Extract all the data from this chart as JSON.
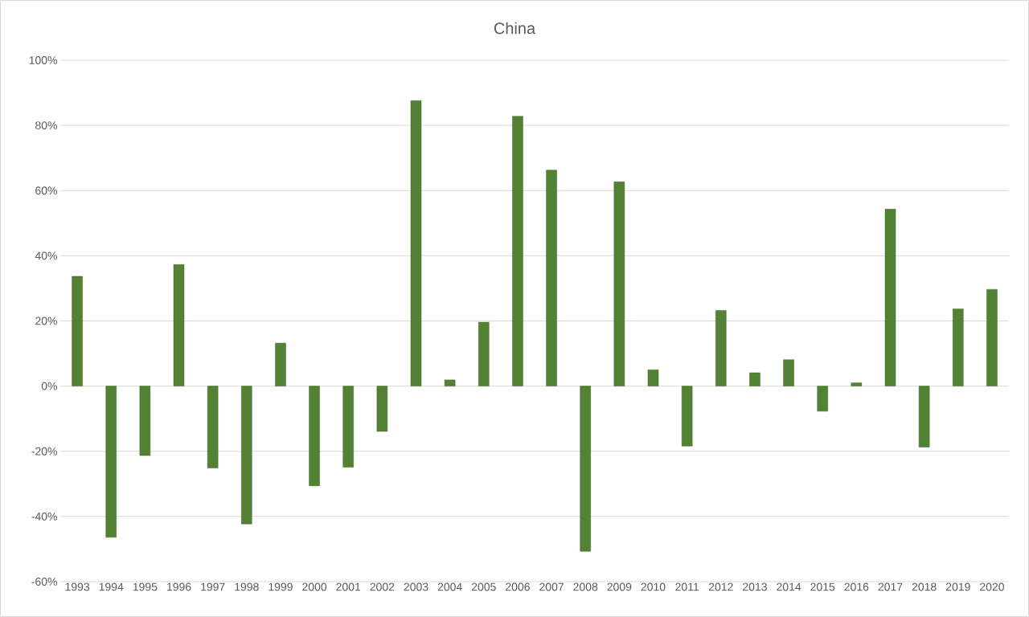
{
  "chart_data": {
    "type": "bar",
    "title": "China",
    "categories": [
      "1993",
      "1994",
      "1995",
      "1996",
      "1997",
      "1998",
      "1999",
      "2000",
      "2001",
      "2002",
      "2003",
      "2004",
      "2005",
      "2006",
      "2007",
      "2008",
      "2009",
      "2010",
      "2011",
      "2012",
      "2013",
      "2014",
      "2015",
      "2016",
      "2017",
      "2018",
      "2019",
      "2020"
    ],
    "values": [
      33.7,
      -46.4,
      -21.3,
      37.3,
      -25.1,
      -42.3,
      13.2,
      -30.6,
      -24.9,
      -13.9,
      87.6,
      1.9,
      19.6,
      82.8,
      66.3,
      -50.7,
      62.7,
      5.0,
      -18.4,
      23.2,
      4.1,
      8.1,
      -7.7,
      1.0,
      54.3,
      -18.7,
      23.7,
      29.7
    ],
    "color": "#548235",
    "ylim": [
      -60,
      100
    ],
    "yticks": [
      {
        "value": -60,
        "label": "-60%"
      },
      {
        "value": -40,
        "label": "-40%"
      },
      {
        "value": -20,
        "label": "-20%"
      },
      {
        "value": 0,
        "label": "0%"
      },
      {
        "value": 20,
        "label": "20%"
      },
      {
        "value": 40,
        "label": "40%"
      },
      {
        "value": 60,
        "label": "60%"
      },
      {
        "value": 80,
        "label": "80%"
      },
      {
        "value": 100,
        "label": "100%"
      }
    ],
    "grid": "y"
  }
}
